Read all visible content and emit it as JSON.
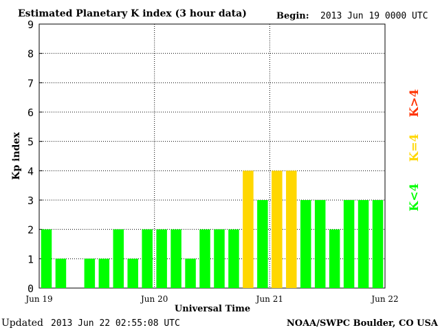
{
  "header": {
    "title": "Estimated Planetary K index (3 hour data)",
    "begin_label": "Begin:",
    "begin_value": "2013 Jun 19 0000 UTC"
  },
  "footer": {
    "updated_label": "Updated",
    "updated_value": "2013 Jun 22 02:55:08 UTC",
    "source": "NOAA/SWPC Boulder, CO USA"
  },
  "legend": [
    {
      "label": "K<4",
      "color": "#00ff00"
    },
    {
      "label": "K=4",
      "color": "#ffd700"
    },
    {
      "label": "K>4",
      "color": "#ff3300"
    }
  ],
  "chart_data": {
    "type": "bar",
    "title": "Estimated Planetary K index (3 hour data)",
    "xlabel": "Universal Time",
    "ylabel": "Kp index",
    "ylim": [
      0,
      9
    ],
    "yticks": [
      "0",
      "1",
      "2",
      "3",
      "4",
      "5",
      "6",
      "7",
      "8",
      "9"
    ],
    "xticks": [
      "Jun 19",
      "Jun 20",
      "Jun 21",
      "Jun 22"
    ],
    "grid": true,
    "interval_hours": 3,
    "values": [
      2,
      1,
      0,
      1,
      1,
      2,
      1,
      2,
      2,
      2,
      1,
      2,
      2,
      2,
      4,
      3,
      4,
      4,
      3,
      3,
      2,
      3,
      3,
      3
    ],
    "colors": {
      "below_4": "#00ff00",
      "equal_4": "#ffd700",
      "above_4": "#ff3300"
    }
  }
}
